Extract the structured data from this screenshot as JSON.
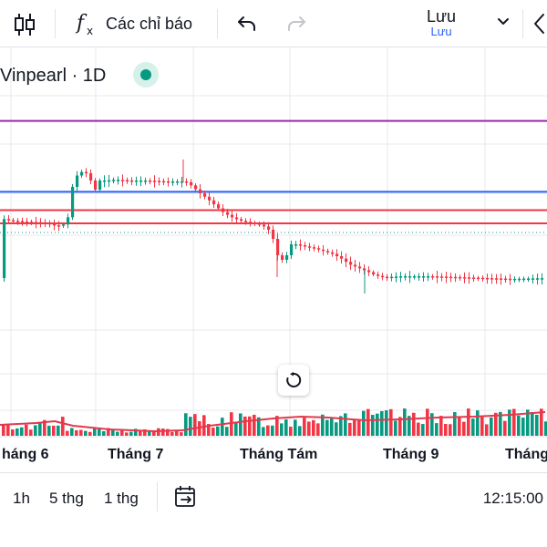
{
  "toolbar": {
    "indicators_label": "Các chỉ báo",
    "save_label": "Lưu",
    "save_sublabel": "Lưu"
  },
  "symbol": {
    "title": "Vinpearl · 1D"
  },
  "colors": {
    "up": "#089981",
    "down": "#f23645",
    "purple_line": "#9c27b0",
    "blue_line": "#2962ff",
    "red_line": "#f23645",
    "volume_ma": "#e03a4e"
  },
  "chart_data": {
    "type": "candlestick",
    "x_axis": {
      "ticks": [
        "háng 6",
        "Tháng 7",
        "Tháng Tám",
        "Tháng 9",
        "Tháng"
      ]
    },
    "horizontal_lines": [
      {
        "color": "purple",
        "level": 0.72
      },
      {
        "color": "blue",
        "level": 0.45
      },
      {
        "color": "red",
        "level": 0.38
      },
      {
        "color": "red",
        "level": 0.33
      }
    ],
    "grid": true
  },
  "bottom": {
    "ranges": [
      "1h",
      "5 thg",
      "1 thg"
    ],
    "time": "12:15:00"
  }
}
